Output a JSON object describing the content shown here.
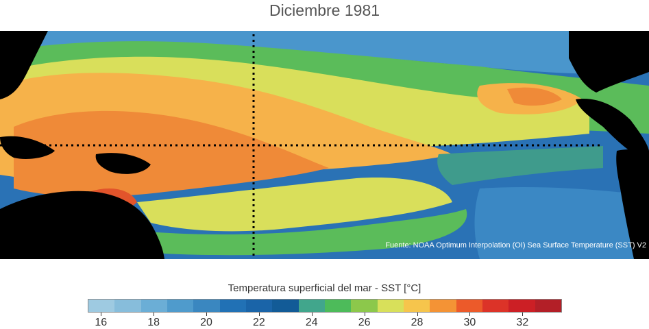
{
  "title": "Diciembre 1981",
  "source": "Fuente: NOAA Optimum Interpolation (OI) Sea Surface Temperature (SST) V2",
  "colorbar": {
    "label": "Temperatura superficial del mar - SST  [°C]",
    "ticks": [
      "16",
      "18",
      "20",
      "22",
      "24",
      "26",
      "28",
      "30",
      "32"
    ],
    "colors": [
      "#9ecae1",
      "#87bddb",
      "#6baed6",
      "#4f9bcc",
      "#3a87c0",
      "#2171b5",
      "#1a64a8",
      "#125b97",
      "#41a68c",
      "#4dbb5a",
      "#8cc84b",
      "#d8e05a",
      "#f6c54c",
      "#f49335",
      "#ec5a2a",
      "#dc3328",
      "#cc1f25",
      "#b31f27"
    ]
  },
  "map": {
    "ocean_deep": "#2a72b5",
    "land_color": "#000000",
    "grid_lines": "dotted",
    "bands": [
      {
        "zone": "north-cold",
        "color": "#4a96cc"
      },
      {
        "zone": "north-green",
        "color": "#5bbc5a"
      },
      {
        "zone": "north-yellow",
        "color": "#d9df5b"
      },
      {
        "zone": "warm-pool",
        "color": "#f6b24a"
      },
      {
        "zone": "warm-core",
        "color": "#ef8a38"
      },
      {
        "zone": "hot-spot",
        "color": "#e2542b"
      },
      {
        "zone": "cold-tongue",
        "color": "#3f9b8c"
      },
      {
        "zone": "south-green",
        "color": "#5bbc5a"
      },
      {
        "zone": "south-cold",
        "color": "#3b88c4"
      }
    ]
  }
}
